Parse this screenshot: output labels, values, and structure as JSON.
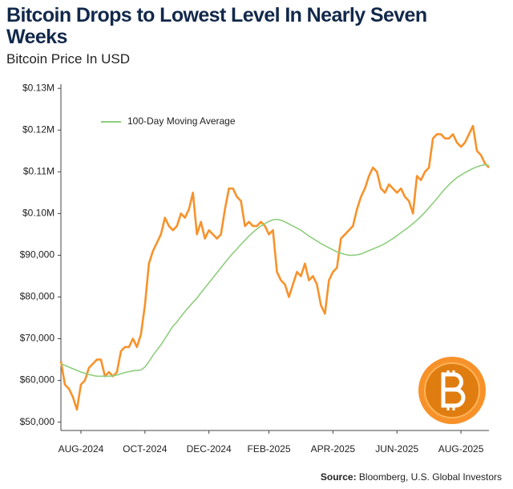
{
  "chart_data": {
    "type": "line",
    "title": "Bitcoin Drops to Lowest Level In Nearly Seven Weeks",
    "subtitle": "Bitcoin Price In USD",
    "source_label": "Source:",
    "source": "Bloomberg, U.S. Global Investors",
    "legend": "upper left",
    "grid": false,
    "categories": [
      null,
      null,
      null,
      null,
      null,
      "AUG-2024",
      null,
      null,
      null,
      null,
      null,
      null,
      null,
      null,
      null,
      null,
      null,
      null,
      null,
      null,
      null,
      "OCT-2024",
      null,
      null,
      null,
      null,
      null,
      null,
      null,
      null,
      null,
      null,
      null,
      null,
      null,
      null,
      null,
      "DEC-2024",
      null,
      null,
      null,
      null,
      null,
      null,
      null,
      null,
      null,
      null,
      null,
      null,
      null,
      null,
      "FEB-2025",
      null,
      null,
      null,
      null,
      null,
      null,
      null,
      null,
      null,
      null,
      null,
      null,
      null,
      null,
      null,
      "APR-2025",
      null,
      null,
      null,
      null,
      null,
      null,
      null,
      null,
      null,
      null,
      null,
      null,
      null,
      null,
      null,
      "JUN-2025",
      null,
      null,
      null,
      null,
      null,
      null,
      null,
      null,
      null,
      null,
      null,
      null,
      null,
      null,
      null,
      "AUG-2025",
      null,
      null,
      null,
      null,
      null,
      null,
      null
    ],
    "series": [
      {
        "name": null,
        "color": "#f7922a",
        "width": 2.6,
        "values": [
          64600,
          59000,
          58000,
          56000,
          53000,
          59000,
          60000,
          63000,
          64000,
          65000,
          65000,
          61000,
          62000,
          61000,
          62000,
          67000,
          68000,
          68000,
          70000,
          68000,
          71000,
          78000,
          88000,
          91000,
          93000,
          95000,
          99000,
          97000,
          96000,
          97000,
          100000,
          99000,
          101000,
          105000,
          95000,
          98000,
          94000,
          96000,
          95000,
          94000,
          95000,
          101000,
          106000,
          106000,
          104000,
          103000,
          97000,
          98000,
          97000,
          97000,
          98000,
          97000,
          95000,
          96000,
          86000,
          84000,
          83000,
          80000,
          83000,
          86000,
          85000,
          88000,
          84000,
          85000,
          83000,
          78000,
          76000,
          84000,
          86000,
          87000,
          94000,
          95000,
          96000,
          97000,
          101000,
          104000,
          106000,
          109000,
          111000,
          110000,
          106000,
          105000,
          107000,
          106000,
          105000,
          106000,
          104000,
          103000,
          100000,
          109000,
          108000,
          110000,
          111000,
          118000,
          119000,
          119000,
          118000,
          118000,
          119000,
          117000,
          116000,
          117000,
          119000,
          121000,
          115000,
          114000,
          112000,
          111000
        ]
      },
      {
        "name": "100-Day Moving Average",
        "color": "#8fce7d",
        "width": 1.6,
        "values": [
          64000,
          63600,
          63200,
          62800,
          62400,
          62000,
          61700,
          61400,
          61200,
          61000,
          61000,
          61000,
          61000,
          61100,
          61300,
          61600,
          61900,
          62100,
          62300,
          62400,
          62500,
          63200,
          64500,
          66000,
          67300,
          68500,
          70000,
          71500,
          73000,
          74000,
          75300,
          76500,
          77600,
          78700,
          79700,
          81000,
          82200,
          83400,
          84600,
          85800,
          87000,
          88200,
          89400,
          90500,
          91500,
          92600,
          93600,
          94600,
          95500,
          96300,
          97000,
          97600,
          98100,
          98500,
          98600,
          98400,
          98000,
          97500,
          97000,
          96500,
          96000,
          95300,
          94600,
          94000,
          93400,
          92800,
          92300,
          91800,
          91300,
          90800,
          90500,
          90200,
          90000,
          90000,
          90100,
          90300,
          90700,
          91100,
          91500,
          91900,
          92300,
          92800,
          93400,
          94000,
          94700,
          95400,
          96100,
          96800,
          97600,
          98400,
          99300,
          100300,
          101400,
          102500,
          103600,
          104800,
          105900,
          106900,
          107800,
          108600,
          109200,
          109800,
          110300,
          110800,
          111200,
          111500,
          111700,
          111500
        ]
      }
    ],
    "ylim": [
      48000,
      131000
    ],
    "yticks": [
      {
        "value": 50000,
        "label": "$50,000"
      },
      {
        "value": 60000,
        "label": "$60,000"
      },
      {
        "value": 70000,
        "label": "$70,000"
      },
      {
        "value": 80000,
        "label": "$80,000"
      },
      {
        "value": 90000,
        "label": "$90,000"
      },
      {
        "value": 100000,
        "label": "$0.10M"
      },
      {
        "value": 110000,
        "label": "$0.11M"
      },
      {
        "value": 120000,
        "label": "$0.12M"
      },
      {
        "value": 130000,
        "label": "$0.13M"
      }
    ]
  }
}
